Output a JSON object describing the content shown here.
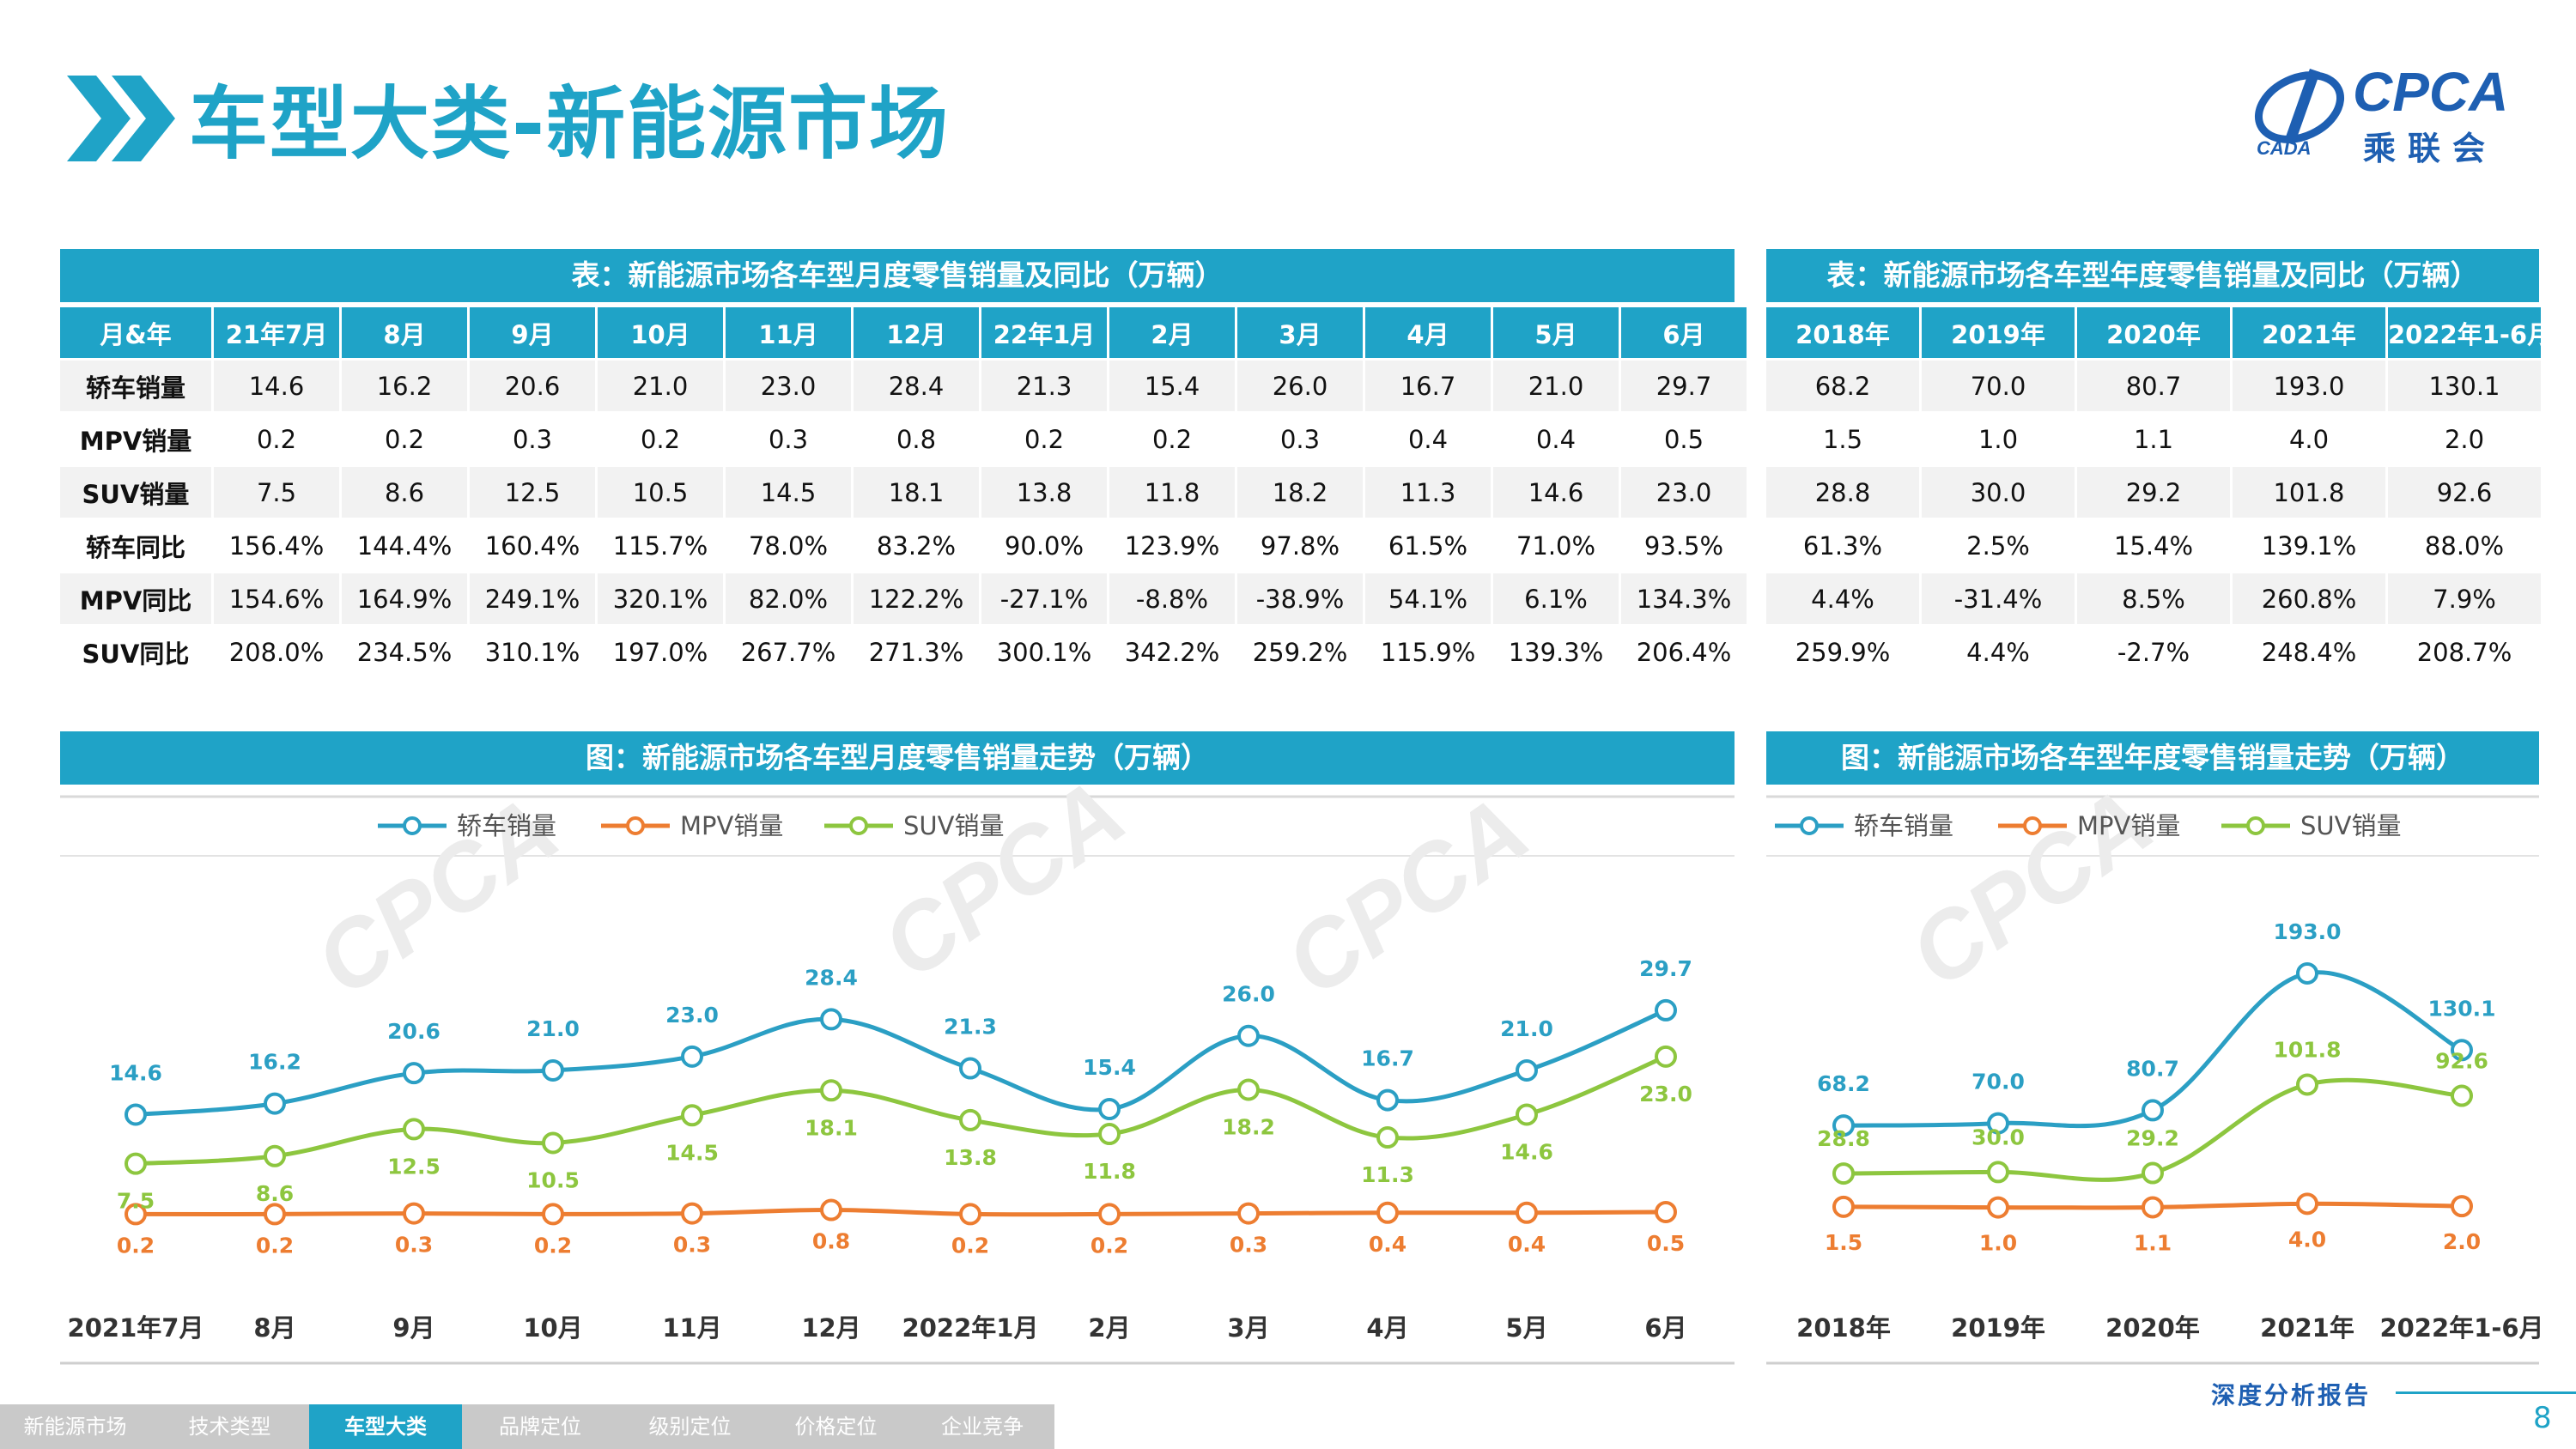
{
  "header": {
    "title": "车型大类-新能源市场",
    "logo_text": "CPCA",
    "logo_sub": "乘联会",
    "logo_small": "CADA"
  },
  "monthly_table": {
    "caption": "表：新能源市场各车型月度零售销量及同比（万辆）",
    "columns": [
      "月&年",
      "21年7月",
      "8月",
      "9月",
      "10月",
      "11月",
      "12月",
      "22年1月",
      "2月",
      "3月",
      "4月",
      "5月",
      "6月"
    ],
    "rows": [
      {
        "label": "轿车销量",
        "values": [
          "14.6",
          "16.2",
          "20.6",
          "21.0",
          "23.0",
          "28.4",
          "21.3",
          "15.4",
          "26.0",
          "16.7",
          "21.0",
          "29.7"
        ]
      },
      {
        "label": "MPV销量",
        "values": [
          "0.2",
          "0.2",
          "0.3",
          "0.2",
          "0.3",
          "0.8",
          "0.2",
          "0.2",
          "0.3",
          "0.4",
          "0.4",
          "0.5"
        ]
      },
      {
        "label": "SUV销量",
        "values": [
          "7.5",
          "8.6",
          "12.5",
          "10.5",
          "14.5",
          "18.1",
          "13.8",
          "11.8",
          "18.2",
          "11.3",
          "14.6",
          "23.0"
        ]
      },
      {
        "label": "轿车同比",
        "values": [
          "156.4%",
          "144.4%",
          "160.4%",
          "115.7%",
          "78.0%",
          "83.2%",
          "90.0%",
          "123.9%",
          "97.8%",
          "61.5%",
          "71.0%",
          "93.5%"
        ]
      },
      {
        "label": "MPV同比",
        "values": [
          "154.6%",
          "164.9%",
          "249.1%",
          "320.1%",
          "82.0%",
          "122.2%",
          "-27.1%",
          "-8.8%",
          "-38.9%",
          "54.1%",
          "6.1%",
          "134.3%"
        ]
      },
      {
        "label": "SUV同比",
        "values": [
          "208.0%",
          "234.5%",
          "310.1%",
          "197.0%",
          "267.7%",
          "271.3%",
          "300.1%",
          "342.2%",
          "259.2%",
          "115.9%",
          "139.3%",
          "206.4%"
        ]
      }
    ]
  },
  "annual_table": {
    "caption": "表：新能源市场各车型年度零售销量及同比（万辆）",
    "columns": [
      "2018年",
      "2019年",
      "2020年",
      "2021年",
      "2022年1-6月"
    ],
    "rows": [
      {
        "values": [
          "68.2",
          "70.0",
          "80.7",
          "193.0",
          "130.1"
        ]
      },
      {
        "values": [
          "1.5",
          "1.0",
          "1.1",
          "4.0",
          "2.0"
        ]
      },
      {
        "values": [
          "28.8",
          "30.0",
          "29.2",
          "101.8",
          "92.6"
        ]
      },
      {
        "values": [
          "61.3%",
          "2.5%",
          "15.4%",
          "139.1%",
          "88.0%"
        ]
      },
      {
        "values": [
          "4.4%",
          "-31.4%",
          "8.5%",
          "260.8%",
          "7.9%"
        ]
      },
      {
        "values": [
          "259.9%",
          "4.4%",
          "-2.7%",
          "248.4%",
          "208.7%"
        ]
      }
    ]
  },
  "chart_data": [
    {
      "type": "line",
      "title": "图：新能源市场各车型月度零售销量走势（万辆）",
      "categories": [
        "2021年7月",
        "8月",
        "9月",
        "10月",
        "11月",
        "12月",
        "2022年1月",
        "2月",
        "3月",
        "4月",
        "5月",
        "6月"
      ],
      "series": [
        {
          "name": "轿车销量",
          "color": "#2b9fc4",
          "values": [
            14.6,
            16.2,
            20.6,
            21.0,
            23.0,
            28.4,
            21.3,
            15.4,
            26.0,
            16.7,
            21.0,
            29.7
          ]
        },
        {
          "name": "MPV销量",
          "color": "#ed7d31",
          "values": [
            0.2,
            0.2,
            0.3,
            0.2,
            0.3,
            0.8,
            0.2,
            0.2,
            0.3,
            0.4,
            0.4,
            0.5
          ]
        },
        {
          "name": "SUV销量",
          "color": "#8dc63f",
          "values": [
            7.5,
            8.6,
            12.5,
            10.5,
            14.5,
            18.1,
            13.8,
            11.8,
            18.2,
            11.3,
            14.6,
            23.0
          ]
        }
      ],
      "legend": "top-center",
      "smooth": true
    },
    {
      "type": "line",
      "title": "图：新能源市场各车型年度零售销量走势（万辆）",
      "categories": [
        "2018年",
        "2019年",
        "2020年",
        "2021年",
        "2022年1-6月"
      ],
      "series": [
        {
          "name": "轿车销量",
          "color": "#2b9fc4",
          "values": [
            68.2,
            70.0,
            80.7,
            193.0,
            130.1
          ]
        },
        {
          "name": "MPV销量",
          "color": "#ed7d31",
          "values": [
            1.5,
            1.0,
            1.1,
            4.0,
            2.0
          ]
        },
        {
          "name": "SUV销量",
          "color": "#8dc63f",
          "values": [
            28.8,
            30.0,
            29.2,
            101.8,
            92.6
          ]
        }
      ],
      "legend": "top-center",
      "smooth": true
    }
  ],
  "footer": {
    "tabs": [
      "新能源市场",
      "技术类型",
      "车型大类",
      "品牌定位",
      "级别定位",
      "价格定位",
      "企业竞争"
    ],
    "active_tab": "车型大类",
    "report": "深度分析报告",
    "page": "8"
  }
}
